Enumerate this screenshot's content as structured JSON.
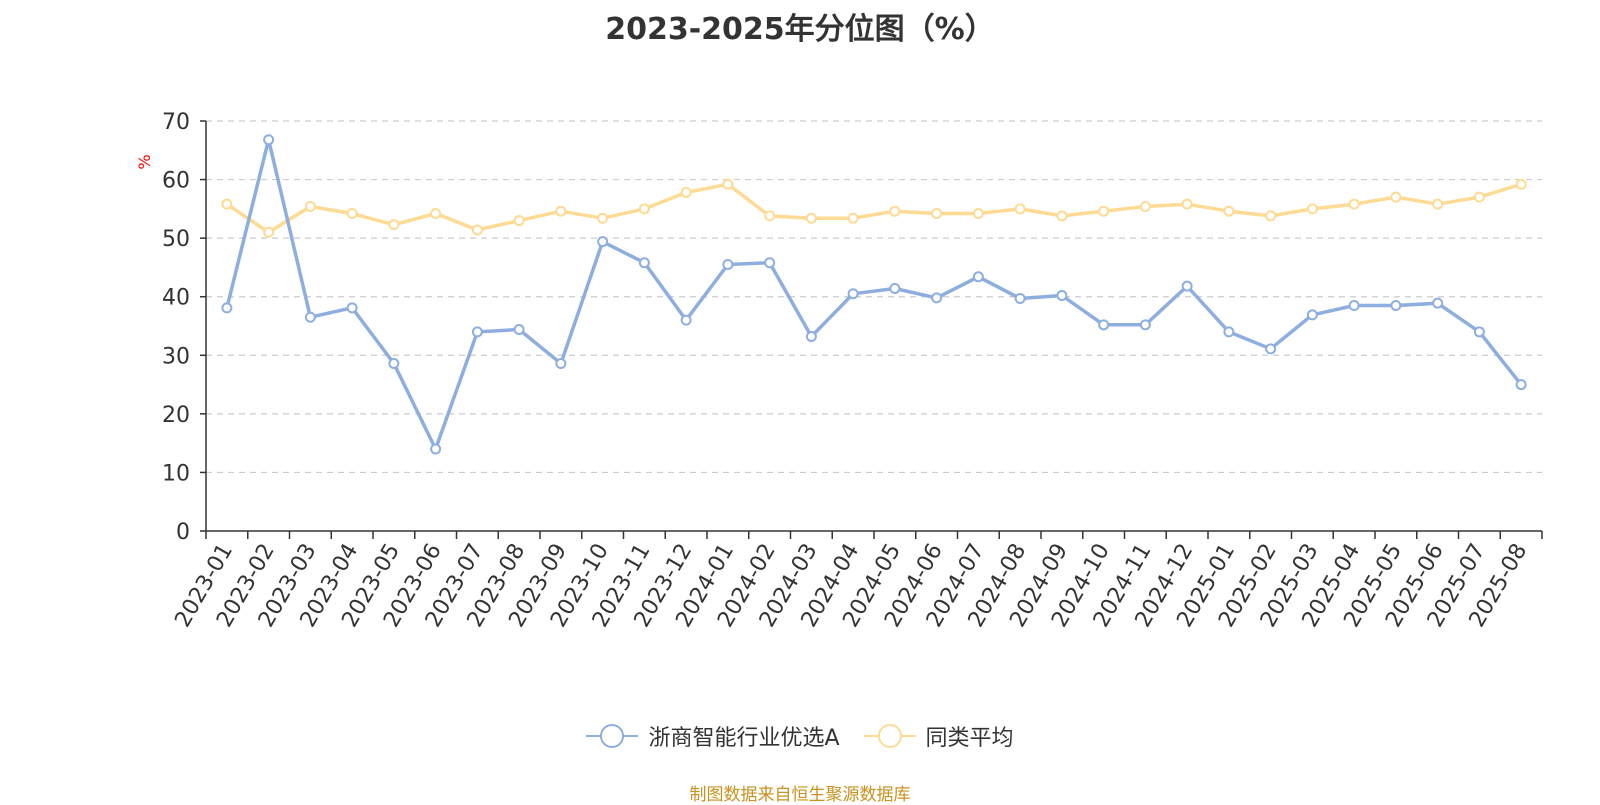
{
  "title": "2023-2025年分位图（%）",
  "source_note": "制图数据来自恒生聚源数据库",
  "colors": {
    "series_a": "#8eaee0",
    "series_b": "#fddb94",
    "grid": "#cccccc",
    "axis": "#333333",
    "unit": "#ff0000"
  },
  "chart_data": {
    "type": "line",
    "title": "2023-2025年分位图（%）",
    "ylabel": "%",
    "ylim": [
      0,
      70
    ],
    "yticks": [
      0,
      10,
      20,
      30,
      40,
      50,
      60,
      70
    ],
    "grid": true,
    "legend_position": "bottom",
    "categories": [
      "2023-01",
      "2023-02",
      "2023-03",
      "2023-04",
      "2023-05",
      "2023-06",
      "2023-07",
      "2023-08",
      "2023-09",
      "2023-10",
      "2023-11",
      "2023-12",
      "2024-01",
      "2024-02",
      "2024-03",
      "2024-04",
      "2024-05",
      "2024-06",
      "2024-07",
      "2024-08",
      "2024-09",
      "2024-10",
      "2024-11",
      "2024-12",
      "2025-01",
      "2025-02",
      "2025-03",
      "2025-04",
      "2025-05",
      "2025-06",
      "2025-07",
      "2025-08"
    ],
    "series": [
      {
        "name": "浙商智能行业优选A",
        "color": "#8eaee0",
        "values": [
          38.1,
          66.8,
          36.5,
          38.1,
          28.6,
          14.0,
          34.0,
          34.4,
          28.6,
          49.4,
          45.8,
          36.0,
          45.5,
          45.8,
          33.2,
          40.5,
          41.4,
          39.8,
          43.4,
          39.7,
          40.2,
          35.2,
          35.2,
          41.8,
          34.0,
          31.1,
          36.9,
          38.5,
          38.5,
          38.9,
          34.0,
          25.0
        ]
      },
      {
        "name": "同类平均",
        "color": "#fddb94",
        "values": [
          55.8,
          51.0,
          55.4,
          54.2,
          52.3,
          54.2,
          51.4,
          53.0,
          54.6,
          53.4,
          55.0,
          57.8,
          59.2,
          53.8,
          53.4,
          53.4,
          54.6,
          54.2,
          54.2,
          55.0,
          53.8,
          54.6,
          55.4,
          55.8,
          54.6,
          53.8,
          55.0,
          55.8,
          57.0,
          55.8,
          57.0,
          59.2
        ]
      }
    ]
  }
}
